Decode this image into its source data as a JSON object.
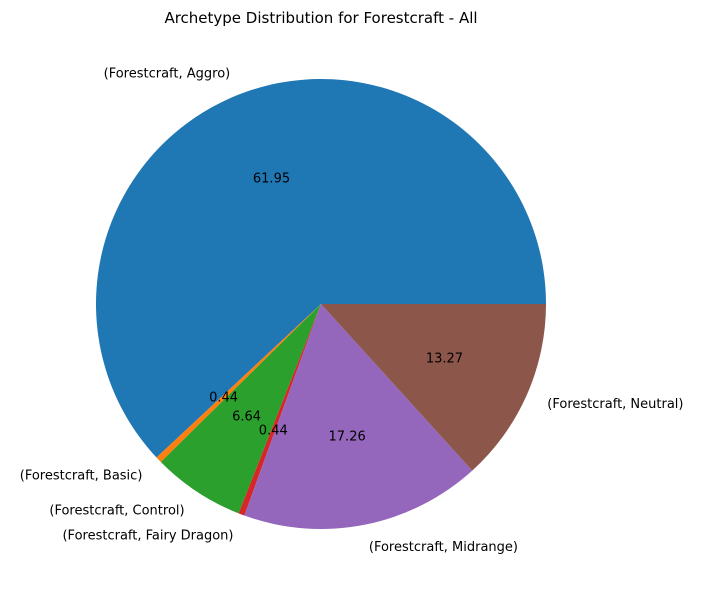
{
  "chart_data": {
    "type": "pie",
    "title": "Archetype Distribution for Forestcraft - All",
    "slices": [
      {
        "label": "(Forestcraft, Aggro)",
        "value": 61.95,
        "pct_label": "61.95",
        "color": "#1f77b4"
      },
      {
        "label": "(Forestcraft, Basic)",
        "value": 0.44,
        "pct_label": "0.44",
        "color": "#ff7f0e"
      },
      {
        "label": "(Forestcraft, Control)",
        "value": 6.64,
        "pct_label": "6.64",
        "color": "#2ca02c"
      },
      {
        "label": "(Forestcraft, Fairy Dragon)",
        "value": 0.44,
        "pct_label": "0.44",
        "color": "#d62728"
      },
      {
        "label": "(Forestcraft, Midrange)",
        "value": 17.26,
        "pct_label": "17.26",
        "color": "#9467bd"
      },
      {
        "label": "(Forestcraft, Neutral)",
        "value": 13.27,
        "pct_label": "13.27",
        "color": "#8c564b"
      }
    ],
    "start_angle_deg": 0,
    "direction": "counterclockwise"
  }
}
